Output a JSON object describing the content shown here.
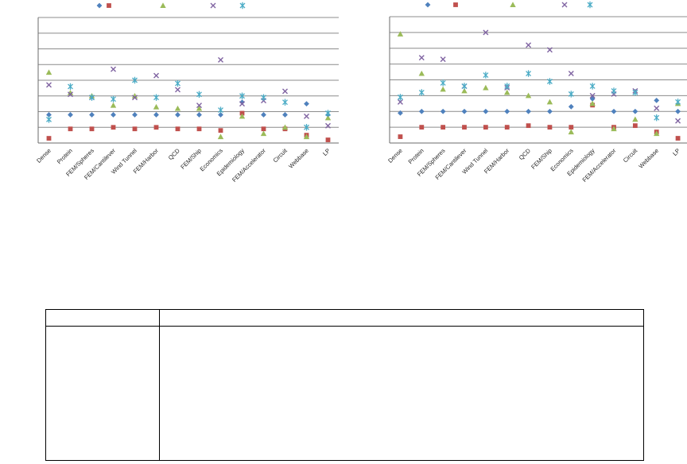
{
  "chart_data": [
    {
      "type": "scatter",
      "title": "",
      "xlabel": "",
      "ylabel": "",
      "ylim": [
        0,
        8
      ],
      "grid": true,
      "legend_position": "top",
      "legend_labels": [
        "",
        "",
        "",
        "",
        ""
      ],
      "categories": [
        "Dense",
        "Protein",
        "FEM/Spheres",
        "FEM/Cantilever",
        "Wind Tunnel",
        "FEM/Harbor",
        "QCD",
        "FEM/Ship",
        "Economics",
        "Epidemiology",
        "FEM/Accelerator",
        "Circuit",
        "Webbase",
        "LP"
      ],
      "series": [
        {
          "name": "blue-diamond",
          "marker": "diamond",
          "color": "#4F81BD",
          "values": [
            1.8,
            1.8,
            1.8,
            1.8,
            1.8,
            1.8,
            1.8,
            1.8,
            1.8,
            2.6,
            1.8,
            1.8,
            2.5,
            1.8
          ]
        },
        {
          "name": "red-square",
          "marker": "square",
          "color": "#C0504D",
          "values": [
            0.3,
            0.9,
            0.9,
            1.0,
            0.9,
            1.0,
            0.9,
            0.9,
            0.8,
            1.9,
            0.9,
            0.9,
            0.5,
            0.2
          ]
        },
        {
          "name": "green-triangle",
          "marker": "triangle",
          "color": "#9BBB59",
          "values": [
            4.5,
            3.2,
            3.0,
            2.4,
            3.0,
            2.3,
            2.2,
            2.2,
            0.4,
            1.7,
            0.6,
            1.0,
            0.4,
            1.6
          ]
        },
        {
          "name": "purple-x",
          "marker": "x",
          "color": "#8064A2",
          "values": [
            3.7,
            3.1,
            2.9,
            4.7,
            2.9,
            4.3,
            3.4,
            2.4,
            5.3,
            2.5,
            2.7,
            3.3,
            1.7,
            1.1
          ]
        },
        {
          "name": "teal-asterisk",
          "marker": "asterisk",
          "color": "#4BACC6",
          "values": [
            1.5,
            3.6,
            2.9,
            2.8,
            4.0,
            2.9,
            3.8,
            3.1,
            2.1,
            3.0,
            2.9,
            2.6,
            1.0,
            1.9
          ]
        }
      ]
    },
    {
      "type": "scatter",
      "title": "",
      "xlabel": "",
      "ylabel": "",
      "ylim": [
        0,
        8
      ],
      "grid": true,
      "legend_position": "top",
      "legend_labels": [
        "",
        "",
        "",
        "",
        ""
      ],
      "categories": [
        "Dense",
        "Protein",
        "FEM/Spheres",
        "FEM/Cantilever",
        "Wind Tunnel",
        "FEM/Harbor",
        "QCD",
        "FEM/Ship",
        "Economics",
        "Epidemiology",
        "FEM/Accelerator",
        "Circuit",
        "Webbase",
        "LP"
      ],
      "series": [
        {
          "name": "blue-diamond",
          "marker": "diamond",
          "color": "#4F81BD",
          "values": [
            1.9,
            2.0,
            2.0,
            2.0,
            2.0,
            2.0,
            2.0,
            2.0,
            2.3,
            2.8,
            2.0,
            2.0,
            2.7,
            2.0
          ]
        },
        {
          "name": "red-square",
          "marker": "square",
          "color": "#C0504D",
          "values": [
            0.4,
            1.0,
            1.0,
            1.0,
            1.0,
            1.0,
            1.1,
            1.0,
            1.0,
            2.4,
            1.0,
            1.1,
            0.7,
            0.3
          ]
        },
        {
          "name": "green-triangle",
          "marker": "triangle",
          "color": "#9BBB59",
          "values": [
            6.9,
            4.4,
            3.4,
            3.3,
            3.5,
            3.2,
            3.0,
            2.6,
            0.7,
            2.5,
            0.9,
            1.5,
            0.6,
            2.5
          ]
        },
        {
          "name": "purple-x",
          "marker": "x",
          "color": "#8064A2",
          "values": [
            2.6,
            5.4,
            5.3,
            3.6,
            7.0,
            3.5,
            6.2,
            5.9,
            4.4,
            3.0,
            3.1,
            3.3,
            2.2,
            1.4
          ]
        },
        {
          "name": "teal-asterisk",
          "marker": "asterisk",
          "color": "#4BACC6",
          "values": [
            2.9,
            3.2,
            3.8,
            3.6,
            4.3,
            3.6,
            4.4,
            3.9,
            3.1,
            3.6,
            3.3,
            3.2,
            1.6,
            2.6
          ]
        }
      ]
    }
  ],
  "table": {
    "header": [
      "",
      ""
    ],
    "rows": [
      [
        "",
        ""
      ]
    ]
  }
}
